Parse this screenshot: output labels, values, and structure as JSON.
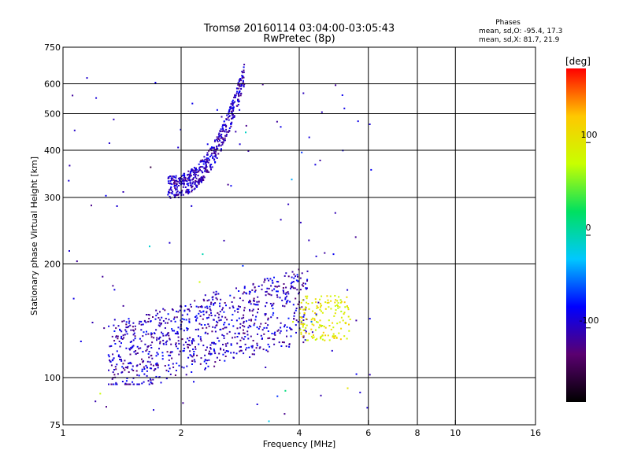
{
  "header": {
    "title": "Tromsø 20160114 03:04:00-03:05:43",
    "subtitle": "RwPretec (8p)"
  },
  "phase_box": {
    "heading": "Phases",
    "line1": "mean, sd,O: -95.4, 17.3",
    "line2": "mean, sd,X:  81.7, 21.9"
  },
  "chart_data": {
    "type": "scatter",
    "xlabel": "Frequency [MHz]",
    "ylabel": "Stationary phase Virtual Height [km]",
    "x_scale": "log",
    "y_scale": "log",
    "xlim": [
      1,
      16
    ],
    "ylim": [
      75,
      750
    ],
    "x_ticks": [
      1,
      2,
      4,
      6,
      8,
      10,
      16
    ],
    "y_ticks": [
      75,
      100,
      200,
      300,
      400,
      500,
      600,
      750
    ],
    "grid": true,
    "colorbar": {
      "label": "[deg]",
      "range": [
        -180,
        180
      ],
      "ticks": [
        100,
        0,
        -100
      ],
      "colormap": "rainbow",
      "colors": [
        "#000000",
        "#5a0070",
        "#0000ff",
        "#00c8ff",
        "#00e060",
        "#c8ff00",
        "#ffc800",
        "#ff0000"
      ]
    },
    "series": [
      {
        "kind": "o_trace_upper",
        "x_range": [
          1.85,
          2.9
        ],
        "y_range": [
          320,
          640
        ],
        "phase": -100,
        "approx_count": 520
      },
      {
        "kind": "o_trace_lower",
        "x_range": [
          1.3,
          4.2
        ],
        "y_range": [
          95,
          200
        ],
        "phase": -100,
        "approx_count": 900
      },
      {
        "kind": "x_trace_cluster",
        "x_range": [
          4.0,
          5.4
        ],
        "y_range": [
          125,
          165
        ],
        "phase": 100,
        "approx_count": 160
      },
      {
        "kind": "scattered",
        "x_range": [
          1.0,
          6.2
        ],
        "y_range": [
          75,
          640
        ],
        "phase": -100,
        "approx_count": 120
      }
    ]
  }
}
